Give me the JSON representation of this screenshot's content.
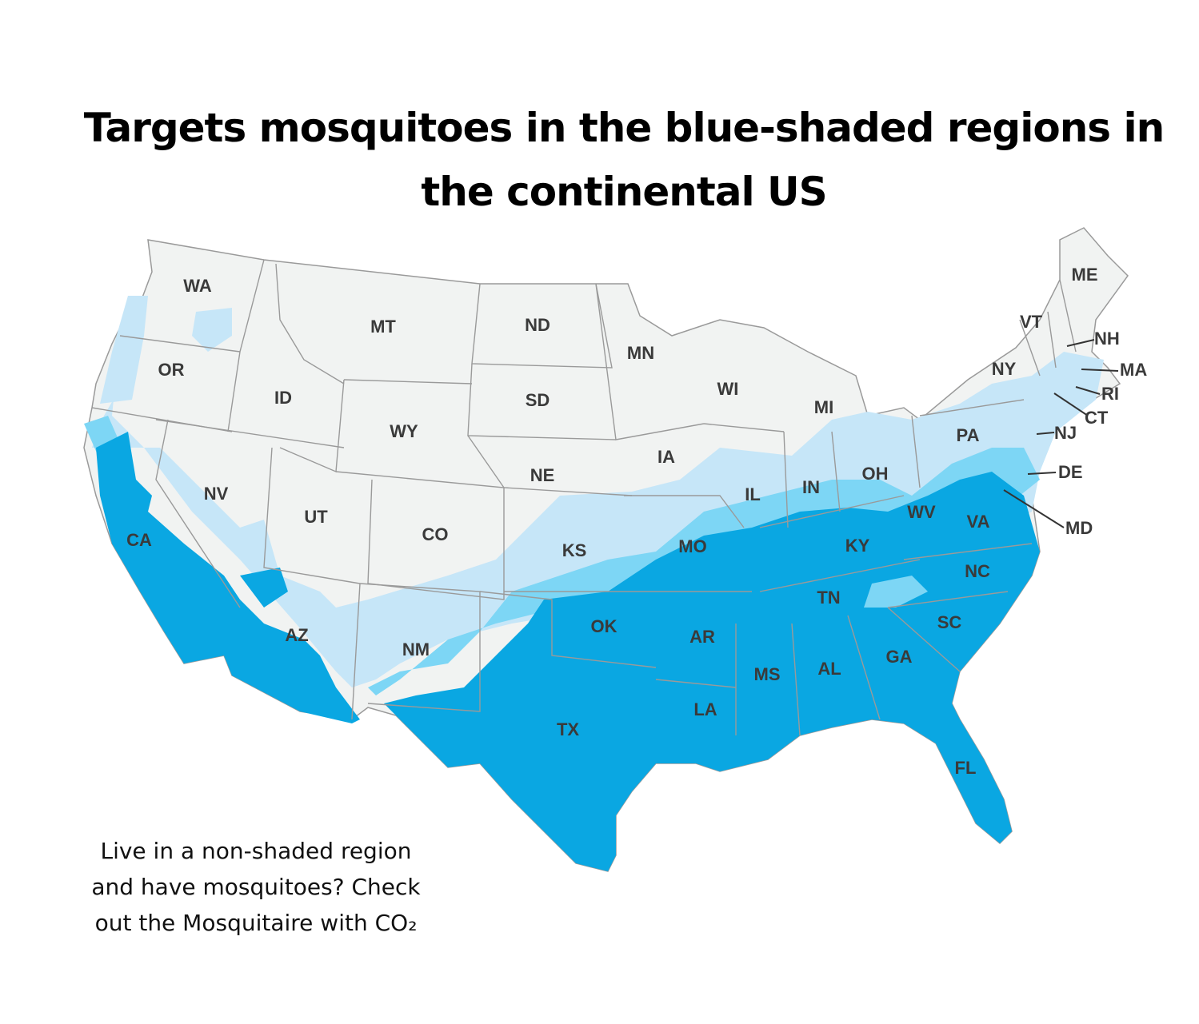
{
  "title": "Targets mosquitoes in the blue-shaded regions in the continental US",
  "caption": {
    "line1": "Live in a non-shaded region",
    "line2": "and have mosquitoes? Check",
    "line3": "out the Mosquitaire with CO₂"
  },
  "colors": {
    "unshaded": "#f1f3f2",
    "light_blue": "#c6e6f8",
    "mid_blue": "#7dd6f5",
    "dark_blue": "#0aa7e2",
    "border": "#9a9a9a"
  },
  "states": [
    {
      "id": "WA",
      "label": "WA"
    },
    {
      "id": "OR",
      "label": "OR"
    },
    {
      "id": "CA",
      "label": "CA"
    },
    {
      "id": "ID",
      "label": "ID"
    },
    {
      "id": "NV",
      "label": "NV"
    },
    {
      "id": "MT",
      "label": "MT"
    },
    {
      "id": "WY",
      "label": "WY"
    },
    {
      "id": "UT",
      "label": "UT"
    },
    {
      "id": "AZ",
      "label": "AZ"
    },
    {
      "id": "CO",
      "label": "CO"
    },
    {
      "id": "NM",
      "label": "NM"
    },
    {
      "id": "ND",
      "label": "ND"
    },
    {
      "id": "SD",
      "label": "SD"
    },
    {
      "id": "NE",
      "label": "NE"
    },
    {
      "id": "KS",
      "label": "KS"
    },
    {
      "id": "OK",
      "label": "OK"
    },
    {
      "id": "TX",
      "label": "TX"
    },
    {
      "id": "MN",
      "label": "MN"
    },
    {
      "id": "IA",
      "label": "IA"
    },
    {
      "id": "MO",
      "label": "MO"
    },
    {
      "id": "AR",
      "label": "AR"
    },
    {
      "id": "LA",
      "label": "LA"
    },
    {
      "id": "WI",
      "label": "WI"
    },
    {
      "id": "IL",
      "label": "IL"
    },
    {
      "id": "MI",
      "label": "MI"
    },
    {
      "id": "IN",
      "label": "IN"
    },
    {
      "id": "OH",
      "label": "OH"
    },
    {
      "id": "KY",
      "label": "KY"
    },
    {
      "id": "TN",
      "label": "TN"
    },
    {
      "id": "MS",
      "label": "MS"
    },
    {
      "id": "AL",
      "label": "AL"
    },
    {
      "id": "GA",
      "label": "GA"
    },
    {
      "id": "FL",
      "label": "FL"
    },
    {
      "id": "SC",
      "label": "SC"
    },
    {
      "id": "NC",
      "label": "NC"
    },
    {
      "id": "VA",
      "label": "VA"
    },
    {
      "id": "WV",
      "label": "WV"
    },
    {
      "id": "PA",
      "label": "PA"
    },
    {
      "id": "NY",
      "label": "NY"
    },
    {
      "id": "VT",
      "label": "VT"
    },
    {
      "id": "ME",
      "label": "ME"
    },
    {
      "id": "NH",
      "label": "NH"
    },
    {
      "id": "MA",
      "label": "MA"
    },
    {
      "id": "RI",
      "label": "RI"
    },
    {
      "id": "CT",
      "label": "CT"
    },
    {
      "id": "NJ",
      "label": "NJ"
    },
    {
      "id": "DE",
      "label": "DE"
    },
    {
      "id": "MD",
      "label": "MD"
    }
  ]
}
